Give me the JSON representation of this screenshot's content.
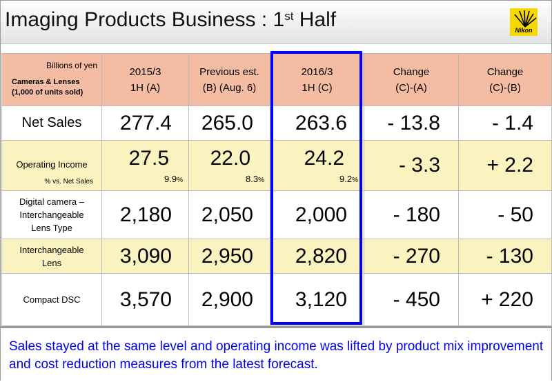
{
  "title": {
    "main": "Imaging Products Business : 1",
    "sup": "st",
    "tail": " Half"
  },
  "logo": {
    "text": "Nikon",
    "color": "#f5d800"
  },
  "header": {
    "units": "Billions of yen",
    "units2_line1": "Cameras & Lenses",
    "units2_line2": "(1,000 of units sold)",
    "col_a_line1": "2015/3",
    "col_a_line2": "1H (A)",
    "col_b_line1": "Previous est.",
    "col_b_line2": "(B)  (Aug. 6)",
    "col_c_line1": "2016/3",
    "col_c_line2": "1H (C)",
    "col_d_line1": "Change",
    "col_d_line2": "(C)-(A)",
    "col_e_line1": "Change",
    "col_e_line2": "(C)-(B)"
  },
  "rows": {
    "net_sales": {
      "label": "Net Sales",
      "a": "277.4",
      "b": "265.0",
      "c": "263.6",
      "d": "- 13.8",
      "e": "- 1.4"
    },
    "operating_income": {
      "label": "Operating Income",
      "sub_label": "% vs. Net Sales",
      "a": "27.5",
      "a_pct": "9.9",
      "b": "22.0",
      "b_pct": "8.3",
      "c": "24.2",
      "c_pct": "9.2",
      "pct_sign": "%",
      "d": "- 3.3",
      "e": "+ 2.2"
    },
    "digital_camera": {
      "label_line1": "Digital camera –",
      "label_line2": "Interchangeable",
      "label_line3": "Lens Type",
      "a": "2,180",
      "b": "2,050",
      "c": "2,000",
      "d": "- 180",
      "e": "- 50"
    },
    "lens": {
      "label_line1": "Interchangeable",
      "label_line2": "Lens",
      "a": "3,090",
      "b": "2,950",
      "c": "2,820",
      "d": "- 270",
      "e": "- 130"
    },
    "compact": {
      "label": "Compact DSC",
      "a": "3,570",
      "b": "2,900",
      "c": "3,120",
      "d": "- 450",
      "e": "+ 220"
    }
  },
  "note": "Sales stayed at the same level and operating income was lifted by product mix improvement and cost reduction measures from the latest forecast."
}
